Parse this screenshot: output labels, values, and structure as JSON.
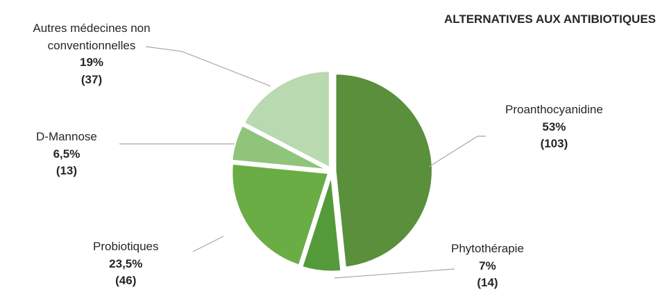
{
  "chart_data": {
    "type": "pie",
    "title": "ALTERNATIVES AUX ANTIBIOTIQUES",
    "slices": [
      {
        "label": "Proanthocyanidine",
        "percent_label": "53%",
        "count_label": "(103)",
        "value": 103,
        "color": "#5a8f3c"
      },
      {
        "label": "Phytothérapie",
        "percent_label": "7%",
        "count_label": "(14)",
        "value": 14,
        "color": "#549a3a"
      },
      {
        "label": "Probiotiques",
        "percent_label": "23,5%",
        "count_label": "(46)",
        "value": 46,
        "color": "#6aad45"
      },
      {
        "label": "D-Mannose",
        "percent_label": "6,5%",
        "count_label": "(13)",
        "value": 13,
        "color": "#8fc47a"
      },
      {
        "label": "Autres médecines non conventionnelles",
        "percent_label": "19%",
        "count_label": "(37)",
        "value": 37,
        "color": "#b9d9b0"
      }
    ]
  }
}
